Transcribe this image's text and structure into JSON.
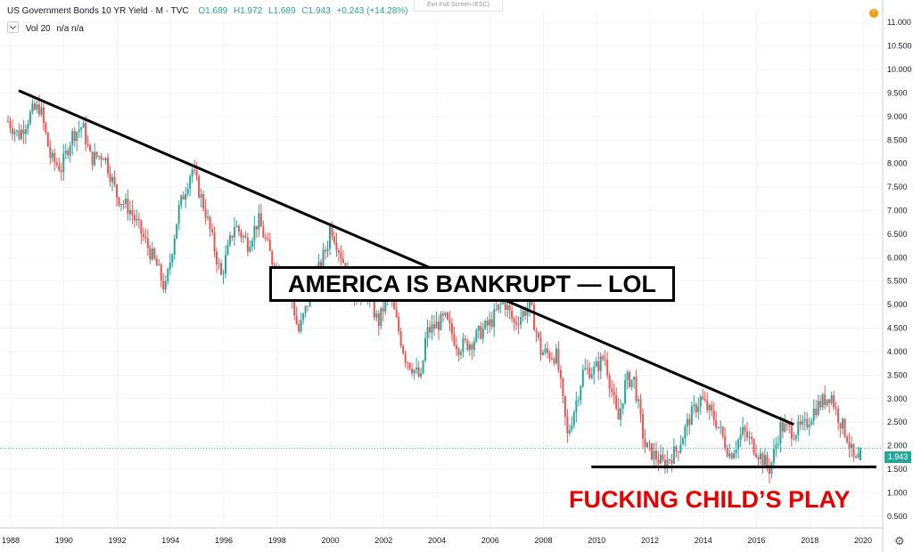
{
  "header": {
    "title": "US Government Bonds 10 YR Yield · M · TVC",
    "open": "O1.689",
    "high": "H1.972",
    "low": "L1.689",
    "close": "C1.943",
    "change": "+0.243 (+14.28%)",
    "volume_label": "Vol 20",
    "volume_values": "n/a n/a"
  },
  "exit_fullscreen_label": "Exit Full Screen (ESC)",
  "alert_icon": "!",
  "last_price_label": "1.943",
  "settings_icon": "gear-icon",
  "annotations": {
    "box_text": "AMERICA IS BANKRUPT — LOL",
    "red_text": "FUCKING CHILD’S PLAY"
  },
  "colors": {
    "up": "#26a69a",
    "down": "#ef5350",
    "grid": "#f0f3fa",
    "axis_text": "#131722",
    "annotation_red": "#e60000"
  },
  "chart_data": {
    "type": "candlestick",
    "interval": "monthly",
    "title": "US Government Bonds 10 YR Yield",
    "y_axis_side": "right",
    "ylim": [
      0.25,
      11.25
    ],
    "y_ticks": [
      "11.000",
      "10.500",
      "10.000",
      "9.500",
      "9.000",
      "8.500",
      "8.000",
      "7.500",
      "7.000",
      "6.500",
      "6.000",
      "5.500",
      "5.000",
      "4.500",
      "4.000",
      "3.500",
      "3.000",
      "2.500",
      "2.000",
      "1.500",
      "1.000",
      "0.500"
    ],
    "x_ticks": [
      "1988",
      "1990",
      "1992",
      "1994",
      "1996",
      "1998",
      "2000",
      "2002",
      "2004",
      "2006",
      "2008",
      "2010",
      "2012",
      "2014",
      "2016",
      "2018",
      "2020"
    ],
    "x_range": [
      1987.9,
      2020.75
    ],
    "anchor_closes": [
      [
        1987.9,
        8.9
      ],
      [
        1988.3,
        8.6
      ],
      [
        1988.8,
        9.1
      ],
      [
        1989.1,
        9.2
      ],
      [
        1989.5,
        8.1
      ],
      [
        1989.9,
        7.9
      ],
      [
        1990.3,
        8.6
      ],
      [
        1990.7,
        8.8
      ],
      [
        1991.0,
        8.1
      ],
      [
        1991.5,
        8.2
      ],
      [
        1992.0,
        7.3
      ],
      [
        1992.5,
        7.0
      ],
      [
        1993.0,
        6.4
      ],
      [
        1993.5,
        5.8
      ],
      [
        1993.8,
        5.3
      ],
      [
        1994.3,
        7.0
      ],
      [
        1994.8,
        7.9
      ],
      [
        1995.3,
        7.0
      ],
      [
        1995.9,
        5.6
      ],
      [
        1996.4,
        6.7
      ],
      [
        1996.9,
        6.3
      ],
      [
        1997.3,
        6.8
      ],
      [
        1997.9,
        5.8
      ],
      [
        1998.4,
        5.6
      ],
      [
        1998.8,
        4.4
      ],
      [
        1999.3,
        5.3
      ],
      [
        1999.9,
        6.3
      ],
      [
        2000.0,
        6.7
      ],
      [
        2000.5,
        5.9
      ],
      [
        2000.9,
        5.2
      ],
      [
        2001.3,
        5.4
      ],
      [
        2001.8,
        4.6
      ],
      [
        2002.2,
        5.3
      ],
      [
        2002.8,
        3.9
      ],
      [
        2003.4,
        3.4
      ],
      [
        2003.6,
        4.4
      ],
      [
        2004.3,
        4.7
      ],
      [
        2004.8,
        4.1
      ],
      [
        2005.3,
        4.2
      ],
      [
        2005.6,
        4.4
      ],
      [
        2006.0,
        4.6
      ],
      [
        2006.5,
        5.1
      ],
      [
        2006.9,
        4.6
      ],
      [
        2007.5,
        5.0
      ],
      [
        2007.9,
        4.0
      ],
      [
        2008.5,
        3.9
      ],
      [
        2008.9,
        2.2
      ],
      [
        2009.3,
        3.1
      ],
      [
        2009.5,
        3.6
      ],
      [
        2009.9,
        3.6
      ],
      [
        2010.3,
        3.9
      ],
      [
        2010.8,
        2.5
      ],
      [
        2011.1,
        3.4
      ],
      [
        2011.4,
        3.4
      ],
      [
        2011.8,
        2.0
      ],
      [
        2012.5,
        1.6
      ],
      [
        2013.0,
        1.9
      ],
      [
        2013.5,
        2.6
      ],
      [
        2013.9,
        3.0
      ],
      [
        2014.5,
        2.5
      ],
      [
        2015.0,
        1.8
      ],
      [
        2015.5,
        2.3
      ],
      [
        2016.0,
        1.9
      ],
      [
        2016.5,
        1.5
      ],
      [
        2016.9,
        2.4
      ],
      [
        2017.4,
        2.3
      ],
      [
        2017.8,
        2.4
      ],
      [
        2018.2,
        2.8
      ],
      [
        2018.8,
        3.1
      ],
      [
        2019.0,
        2.7
      ],
      [
        2019.4,
        2.2
      ],
      [
        2019.7,
        1.6
      ],
      [
        2019.8,
        1.7
      ],
      [
        2019.9,
        1.94
      ]
    ],
    "last_candle": {
      "open": 1.689,
      "high": 1.972,
      "low": 1.689,
      "close": 1.943
    },
    "trendlines": [
      {
        "name": "descending-resistance",
        "from": [
          1988.3,
          9.55
        ],
        "to": [
          2017.4,
          2.45
        ]
      },
      {
        "name": "horizontal-support",
        "from": [
          2009.8,
          1.55
        ],
        "to": [
          2020.5,
          1.55
        ]
      }
    ],
    "last_price_line": 1.943
  }
}
